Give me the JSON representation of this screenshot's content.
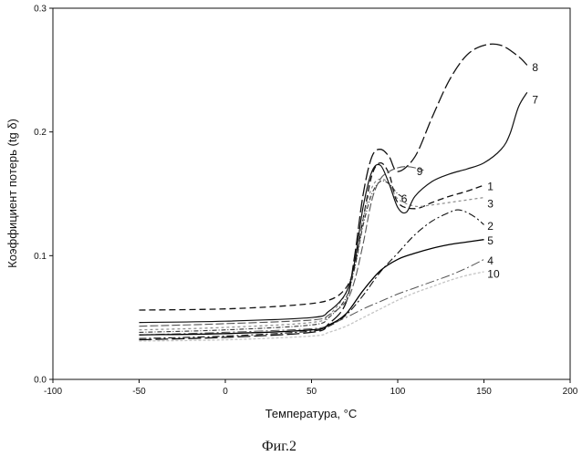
{
  "chart_data": {
    "type": "line",
    "title": "",
    "xlabel": "Температура, °С",
    "ylabel": "Коэффициент потерь (tg δ)",
    "caption": "Фиг.2",
    "xlim": [
      -100,
      200
    ],
    "ylim": [
      0.0,
      0.3
    ],
    "xticks": [
      -100,
      -50,
      0,
      50,
      100,
      150,
      200
    ],
    "yticks": [
      0.0,
      0.1,
      0.2,
      0.3
    ],
    "xtick_labels": [
      "-100",
      "-50",
      "0",
      "50",
      "100",
      "150",
      "200"
    ],
    "ytick_labels": [
      "0.0",
      "0.1",
      "0.2",
      "0.3"
    ],
    "grid": false,
    "legend": "none",
    "series": [
      {
        "name": "1",
        "color": "#111111",
        "dash": "7,4",
        "width": 1.3,
        "x": [
          -50,
          0,
          40,
          60,
          70,
          75,
          80,
          85,
          90,
          95,
          100,
          110,
          120,
          130,
          140,
          150
        ],
        "y": [
          0.056,
          0.057,
          0.06,
          0.064,
          0.074,
          0.092,
          0.13,
          0.165,
          0.175,
          0.166,
          0.143,
          0.138,
          0.143,
          0.148,
          0.152,
          0.157
        ]
      },
      {
        "name": "2",
        "color": "#111111",
        "dash": "8,3,2,3",
        "width": 1.1,
        "x": [
          -50,
          0,
          50,
          60,
          70,
          80,
          90,
          100,
          110,
          120,
          130,
          135,
          140,
          145,
          150
        ],
        "y": [
          0.033,
          0.035,
          0.039,
          0.043,
          0.052,
          0.068,
          0.087,
          0.102,
          0.117,
          0.128,
          0.135,
          0.137,
          0.135,
          0.131,
          0.125
        ]
      },
      {
        "name": "3",
        "color": "#8a8a8a",
        "dash": "3,3",
        "width": 1.2,
        "x": [
          -50,
          0,
          50,
          60,
          70,
          75,
          80,
          85,
          90,
          95,
          100,
          110,
          120,
          130,
          140,
          150
        ],
        "y": [
          0.04,
          0.042,
          0.046,
          0.052,
          0.07,
          0.095,
          0.13,
          0.155,
          0.162,
          0.158,
          0.146,
          0.14,
          0.141,
          0.143,
          0.145,
          0.147
        ]
      },
      {
        "name": "4",
        "color": "#555555",
        "dash": "10,3,2,3",
        "width": 1.0,
        "x": [
          -50,
          0,
          50,
          60,
          70,
          80,
          90,
          100,
          110,
          120,
          130,
          140,
          150
        ],
        "y": [
          0.036,
          0.038,
          0.041,
          0.044,
          0.05,
          0.057,
          0.063,
          0.069,
          0.074,
          0.079,
          0.084,
          0.09,
          0.097
        ]
      },
      {
        "name": "5",
        "color": "#000000",
        "dash": "",
        "width": 1.3,
        "x": [
          -50,
          0,
          50,
          60,
          70,
          80,
          90,
          100,
          110,
          120,
          130,
          140,
          150
        ],
        "y": [
          0.036,
          0.037,
          0.04,
          0.044,
          0.053,
          0.072,
          0.088,
          0.097,
          0.102,
          0.106,
          0.109,
          0.111,
          0.113
        ]
      },
      {
        "name": "6",
        "color": "#333333",
        "dash": "5,2,1,2",
        "width": 1.1,
        "x": [
          -50,
          0,
          50,
          60,
          70,
          75,
          80,
          85,
          90,
          95,
          100,
          105
        ],
        "y": [
          0.038,
          0.04,
          0.044,
          0.05,
          0.066,
          0.09,
          0.125,
          0.15,
          0.16,
          0.158,
          0.15,
          0.146
        ]
      },
      {
        "name": "7",
        "color": "#111111",
        "dash": "",
        "width": 1.2,
        "x": [
          -50,
          0,
          50,
          60,
          70,
          75,
          80,
          85,
          90,
          95,
          100,
          105,
          110,
          120,
          130,
          140,
          150,
          160,
          165,
          170,
          175
        ],
        "y": [
          0.046,
          0.047,
          0.05,
          0.055,
          0.07,
          0.095,
          0.14,
          0.168,
          0.173,
          0.158,
          0.139,
          0.135,
          0.148,
          0.16,
          0.166,
          0.17,
          0.175,
          0.186,
          0.198,
          0.22,
          0.232
        ]
      },
      {
        "name": "8",
        "color": "#111111",
        "dash": "14,4",
        "width": 1.3,
        "x": [
          -50,
          0,
          50,
          60,
          70,
          75,
          80,
          85,
          90,
          95,
          100,
          110,
          120,
          130,
          140,
          150,
          160,
          170,
          175
        ],
        "y": [
          0.032,
          0.034,
          0.038,
          0.045,
          0.062,
          0.1,
          0.15,
          0.18,
          0.186,
          0.18,
          0.168,
          0.18,
          0.212,
          0.242,
          0.262,
          0.27,
          0.27,
          0.261,
          0.254
        ]
      },
      {
        "name": "9",
        "color": "#555555",
        "dash": "9,3",
        "width": 1.1,
        "x": [
          -50,
          0,
          50,
          60,
          70,
          75,
          80,
          85,
          90,
          95,
          100,
          105,
          110,
          115
        ],
        "y": [
          0.043,
          0.045,
          0.048,
          0.052,
          0.063,
          0.08,
          0.11,
          0.145,
          0.162,
          0.168,
          0.171,
          0.172,
          0.171,
          0.169
        ]
      },
      {
        "name": "10",
        "color": "#c4c4c4",
        "dash": "3,2",
        "width": 1.3,
        "x": [
          -50,
          0,
          50,
          60,
          70,
          80,
          90,
          100,
          110,
          120,
          130,
          140,
          150
        ],
        "y": [
          0.031,
          0.032,
          0.035,
          0.038,
          0.043,
          0.05,
          0.057,
          0.064,
          0.07,
          0.075,
          0.08,
          0.084,
          0.087
        ]
      }
    ],
    "annotations": [
      {
        "text": "8",
        "x": 178,
        "y": 0.252
      },
      {
        "text": "7",
        "x": 178,
        "y": 0.226
      },
      {
        "text": "9",
        "x": 111,
        "y": 0.168
      },
      {
        "text": "1",
        "x": 152,
        "y": 0.156
      },
      {
        "text": "6",
        "x": 102,
        "y": 0.146
      },
      {
        "text": "3",
        "x": 152,
        "y": 0.142
      },
      {
        "text": "2",
        "x": 152,
        "y": 0.124
      },
      {
        "text": "5",
        "x": 152,
        "y": 0.112
      },
      {
        "text": "4",
        "x": 152,
        "y": 0.096
      },
      {
        "text": "10",
        "x": 152,
        "y": 0.085
      }
    ]
  }
}
